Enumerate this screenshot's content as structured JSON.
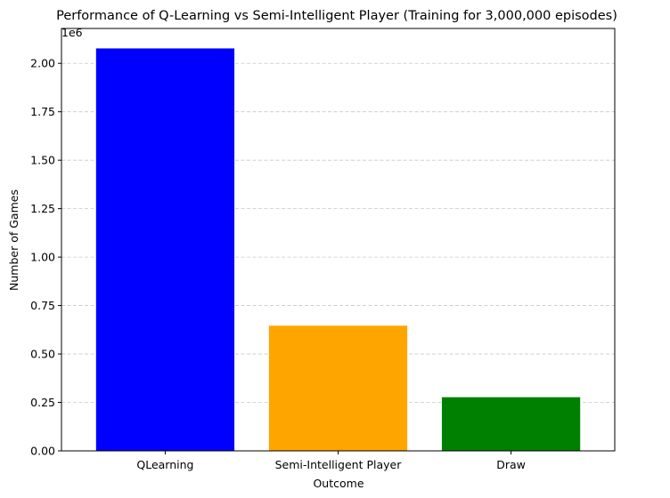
{
  "chart_data": {
    "type": "bar",
    "title": "Performance of Q-Learning vs Semi-Intelligent Player (Training for 3,000,000 episodes)",
    "xlabel": "Outcome",
    "ylabel": "Number of Games",
    "offset_label": "1e6",
    "categories": [
      "QLearning",
      "Semi-Intelligent Player",
      "Draw"
    ],
    "values": [
      2077000,
      646000,
      277000
    ],
    "colors": [
      "#0000ff",
      "#ffa500",
      "#008000"
    ],
    "ylim": [
      0,
      2180000
    ],
    "yticks": [
      0,
      250000,
      500000,
      750000,
      1000000,
      1250000,
      1500000,
      1750000,
      2000000
    ],
    "ytick_labels": [
      "0.00",
      "0.25",
      "0.50",
      "0.75",
      "1.00",
      "1.25",
      "1.50",
      "1.75",
      "2.00"
    ],
    "grid": "y-dashed",
    "legend": "none"
  }
}
